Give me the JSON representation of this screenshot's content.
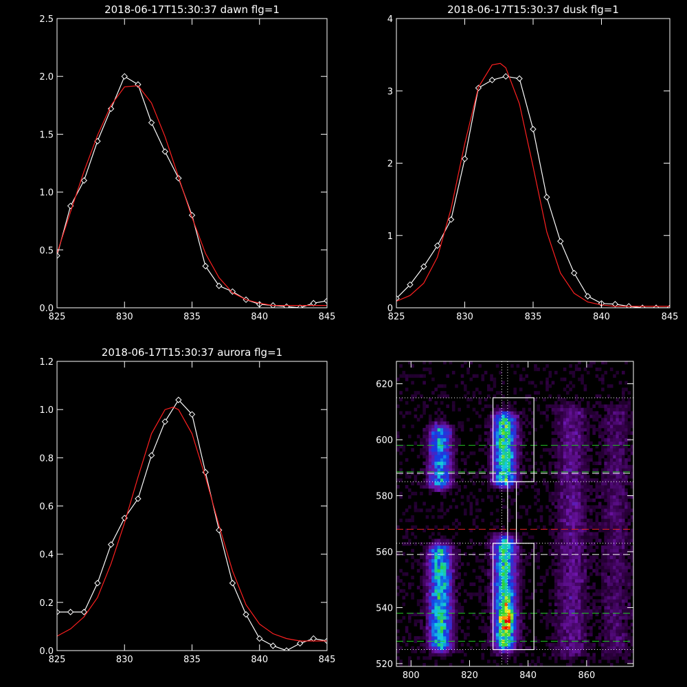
{
  "colors": {
    "background": "#000000",
    "axes": "#ffffff",
    "data": "#ffffff",
    "fit": "#ff2020",
    "green_line": "#22cc22",
    "red_line": "#ee2222"
  },
  "chart_data": [
    {
      "type": "line",
      "title": "2018-06-17T15:30:37 dawn flg=1",
      "xlim": [
        825,
        845
      ],
      "ylim": [
        0,
        2.5
      ],
      "xticks": [
        825,
        830,
        835,
        840,
        845
      ],
      "xtick_labels": [
        "825",
        "830",
        "835",
        "840",
        "845"
      ],
      "yticks": [
        0,
        0.5,
        1.0,
        1.5,
        2.0,
        2.5
      ],
      "ytick_labels": [
        "0.0",
        "0.5",
        "1.0",
        "1.5",
        "2.0",
        "2.5"
      ],
      "series": [
        {
          "x": [
            825,
            826,
            827,
            828,
            829,
            830,
            831,
            832,
            833,
            834,
            835,
            836,
            837,
            838,
            839,
            840,
            841,
            842,
            843,
            844,
            845
          ],
          "y": [
            0.45,
            0.88,
            1.1,
            1.44,
            1.72,
            2.0,
            1.93,
            1.6,
            1.35,
            1.12,
            0.8,
            0.36,
            0.19,
            0.14,
            0.07,
            0.03,
            0.02,
            0.01,
            0.0,
            0.04,
            0.06
          ],
          "markers": "diamond"
        },
        {
          "fit": true,
          "x": [
            825,
            826,
            827,
            828,
            829,
            830,
            831,
            832,
            833,
            834,
            835,
            836,
            837,
            838,
            839,
            840,
            841,
            842,
            843,
            844,
            845
          ],
          "y": [
            0.47,
            0.83,
            1.18,
            1.49,
            1.75,
            1.91,
            1.92,
            1.77,
            1.48,
            1.13,
            0.78,
            0.47,
            0.26,
            0.13,
            0.07,
            0.04,
            0.02,
            0.02,
            0.02,
            0.02,
            0.02
          ]
        }
      ]
    },
    {
      "type": "line",
      "title": "2018-06-17T15:30:37 dusk flg=1",
      "xlim": [
        825,
        845
      ],
      "ylim": [
        0,
        4
      ],
      "xticks": [
        825,
        830,
        835,
        840,
        845
      ],
      "xtick_labels": [
        "825",
        "830",
        "835",
        "840",
        "845"
      ],
      "yticks": [
        0,
        1,
        2,
        3,
        4
      ],
      "ytick_labels": [
        "0",
        "1",
        "2",
        "3",
        "4"
      ],
      "series": [
        {
          "x": [
            825,
            826,
            827,
            828,
            829,
            830,
            831,
            832,
            833,
            834,
            835,
            836,
            837,
            838,
            839,
            840,
            841,
            842,
            843,
            844,
            845
          ],
          "y": [
            0.13,
            0.32,
            0.57,
            0.86,
            1.22,
            2.06,
            3.04,
            3.15,
            3.2,
            3.17,
            2.47,
            1.53,
            0.92,
            0.48,
            0.16,
            0.06,
            0.05,
            0.02,
            0.0,
            0.0,
            0.0
          ],
          "markers": "diamond"
        },
        {
          "fit": true,
          "x": [
            825,
            826,
            827,
            828,
            829,
            830,
            831,
            832,
            832.6,
            833,
            834,
            835,
            836,
            837,
            838,
            839,
            840,
            841,
            842,
            843,
            844,
            845
          ],
          "y": [
            0.09,
            0.17,
            0.34,
            0.7,
            1.37,
            2.27,
            3.05,
            3.36,
            3.38,
            3.32,
            2.82,
            1.95,
            1.05,
            0.48,
            0.2,
            0.08,
            0.04,
            0.02,
            0.02,
            0.02,
            0.02,
            0.02
          ]
        }
      ]
    },
    {
      "type": "line",
      "title": "2018-06-17T15:30:37 aurora flg=1",
      "xlim": [
        825,
        845
      ],
      "ylim": [
        0,
        1.2
      ],
      "xticks": [
        825,
        830,
        835,
        840,
        845
      ],
      "xtick_labels": [
        "825",
        "830",
        "835",
        "840",
        "845"
      ],
      "yticks": [
        0,
        0.2,
        0.4,
        0.6,
        0.8,
        1.0,
        1.2
      ],
      "ytick_labels": [
        "0.0",
        "0.2",
        "0.4",
        "0.6",
        "0.8",
        "1.0",
        "1.2"
      ],
      "series": [
        {
          "x": [
            825,
            826,
            827,
            828,
            829,
            830,
            831,
            832,
            833,
            834,
            835,
            836,
            837,
            838,
            839,
            840,
            841,
            842,
            843,
            844,
            845
          ],
          "y": [
            0.16,
            0.16,
            0.16,
            0.28,
            0.44,
            0.55,
            0.63,
            0.81,
            0.95,
            1.04,
            0.98,
            0.74,
            0.5,
            0.28,
            0.15,
            0.05,
            0.02,
            0.0,
            0.03,
            0.05,
            0.04
          ],
          "markers": "diamond"
        },
        {
          "fit": true,
          "x": [
            825,
            826,
            827,
            828,
            829,
            830,
            831,
            832,
            833,
            833.6,
            834,
            835,
            836,
            837,
            838,
            839,
            840,
            841,
            842,
            843,
            844,
            845
          ],
          "y": [
            0.06,
            0.09,
            0.14,
            0.22,
            0.36,
            0.53,
            0.72,
            0.9,
            1.0,
            1.01,
            1.0,
            0.9,
            0.72,
            0.52,
            0.33,
            0.19,
            0.11,
            0.07,
            0.05,
            0.04,
            0.04,
            0.04
          ]
        }
      ]
    },
    {
      "type": "heatmap",
      "title": "",
      "xlim": [
        795,
        876
      ],
      "ylim": [
        519,
        628
      ],
      "xticks": [
        800,
        820,
        840,
        860
      ],
      "xtick_labels": [
        "800",
        "820",
        "840",
        "860"
      ],
      "yticks": [
        520,
        540,
        560,
        580,
        600,
        620
      ],
      "ytick_labels": [
        "520",
        "540",
        "560",
        "580",
        "600",
        "620"
      ],
      "colormap": "rainbow (black-purple-blue-cyan-green-yellow-red)",
      "emission_columns": [
        {
          "x_center": 810,
          "y_range": [
            527,
            560
          ],
          "peak_level": 0.55
        },
        {
          "x_center": 810,
          "y_range": [
            585,
            603
          ],
          "peak_level": 0.45
        },
        {
          "x_center": 832,
          "y_range": [
            527,
            563
          ],
          "peak_level": 1.0,
          "peak_at": [
            833,
            536
          ]
        },
        {
          "x_center": 832,
          "y_range": [
            586,
            607
          ],
          "peak_level": 0.6
        },
        {
          "x_center": 855,
          "y_range": [
            525,
            610
          ],
          "peak_level": 0.15
        },
        {
          "x_center": 870,
          "y_range": [
            525,
            610
          ],
          "peak_level": 0.1
        }
      ],
      "boxes": [
        {
          "x": [
            828,
            842
          ],
          "y": [
            585,
            615
          ]
        },
        {
          "x": [
            833,
            836
          ],
          "y": [
            563,
            585
          ]
        },
        {
          "x": [
            828,
            842
          ],
          "y": [
            525,
            563
          ]
        }
      ],
      "horizontal_lines": [
        {
          "y": 615,
          "style": "dotted",
          "color": "white"
        },
        {
          "y": 598,
          "style": "dashed",
          "color": "green"
        },
        {
          "y": 588.5,
          "style": "dashed",
          "color": "green"
        },
        {
          "y": 588,
          "style": "dashed",
          "color": "white"
        },
        {
          "y": 585,
          "style": "dotted",
          "color": "white"
        },
        {
          "y": 568,
          "style": "dashed",
          "color": "red"
        },
        {
          "y": 563,
          "style": "dotted",
          "color": "white"
        },
        {
          "y": 559,
          "style": "dashed",
          "color": "white"
        },
        {
          "y": 538,
          "style": "dashed",
          "color": "green"
        },
        {
          "y": 528,
          "style": "dashed",
          "color": "green"
        },
        {
          "y": 525,
          "style": "dotted",
          "color": "white"
        }
      ],
      "vertical_lines": [
        {
          "x": 831,
          "style": "dotted",
          "color": "white"
        },
        {
          "x": 833,
          "style": "dotted",
          "color": "white"
        }
      ]
    }
  ]
}
